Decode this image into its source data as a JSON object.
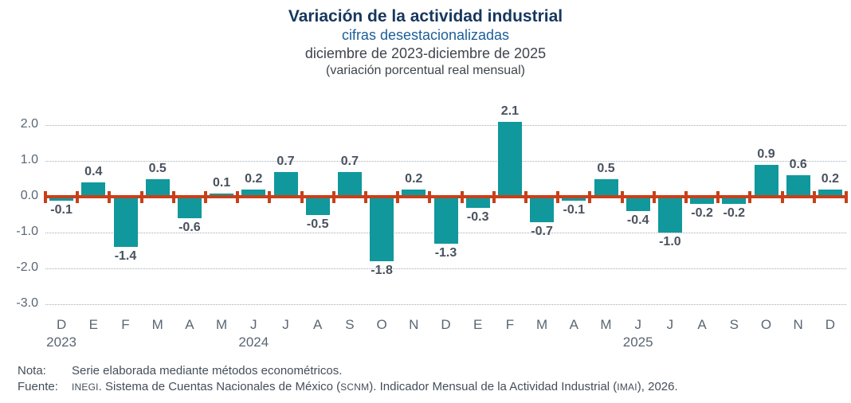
{
  "header": {
    "title": "Variación de la actividad industrial",
    "subtitle": "cifras desestacionalizadas",
    "period": "diciembre de 2023-diciembre de 2025",
    "units": "(variación porcentual real mensual)"
  },
  "chart_data": {
    "type": "bar",
    "title": "Variación de la actividad industrial",
    "subtitle": "cifras desestacionalizadas",
    "period": "diciembre de 2023-diciembre de 2025",
    "units": "(variación porcentual real mensual)",
    "categories": [
      "D",
      "E",
      "F",
      "M",
      "A",
      "M",
      "J",
      "J",
      "A",
      "S",
      "O",
      "N",
      "D",
      "E",
      "F",
      "M",
      "A",
      "M",
      "J",
      "J",
      "A",
      "S",
      "O",
      "N",
      "D"
    ],
    "values": [
      -0.1,
      0.4,
      -1.4,
      0.5,
      -0.6,
      0.1,
      0.2,
      0.7,
      -0.5,
      0.7,
      -1.8,
      0.2,
      -1.3,
      -0.3,
      2.1,
      -0.7,
      -0.1,
      0.5,
      -0.4,
      -1.0,
      -0.2,
      -0.2,
      0.9,
      0.6,
      0.2
    ],
    "year_labels": [
      {
        "label": "2023",
        "index": 0
      },
      {
        "label": "2024",
        "index": 6
      },
      {
        "label": "2025",
        "index": 18
      }
    ],
    "y_ticks": [
      2.0,
      1.0,
      0.0,
      -1.0,
      -2.0,
      -3.0
    ],
    "ylim": [
      -3.0,
      2.2
    ],
    "grid": true,
    "legend": "none",
    "colors": {
      "bar": "#10989C",
      "zero_line": "#C8401A",
      "gridline": "#A3ADB6",
      "value_label": "#49525E",
      "axis_label": "#5A6672",
      "title": "#16375E",
      "subtitle": "#1B5E99"
    }
  },
  "footnotes": {
    "note_label": "Nota:",
    "note_text": "Serie elaborada mediante métodos econométricos.",
    "source_label": "Fuente:",
    "source_segments": [
      {
        "text": "INEGI",
        "small": true
      },
      {
        "text": ". Sistema de Cuentas Nacionales de México (",
        "small": false
      },
      {
        "text": "SCNM",
        "small": true
      },
      {
        "text": "). Indicador Mensual de la Actividad Industrial (",
        "small": false
      },
      {
        "text": "IMAI",
        "small": true
      },
      {
        "text": "), 2026.",
        "small": false
      }
    ]
  }
}
